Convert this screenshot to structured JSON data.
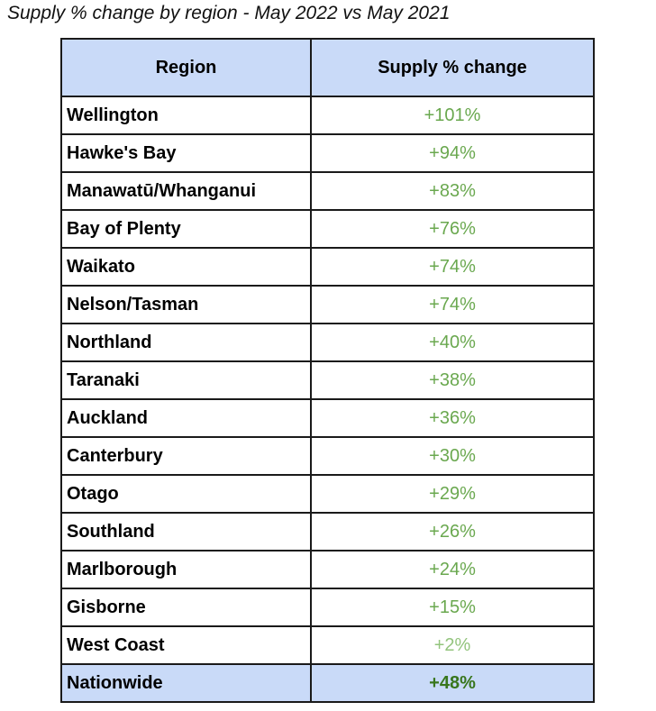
{
  "title": "Supply % change by region - May 2022 vs May 2021",
  "headers": {
    "region": "Region",
    "change": "Supply % change"
  },
  "rows": [
    {
      "region": "Wellington",
      "change": "+101%"
    },
    {
      "region": "Hawke's Bay",
      "change": "+94%"
    },
    {
      "region": "Manawatū/Whanganui",
      "change": "+83%"
    },
    {
      "region": "Bay of Plenty",
      "change": "+76%"
    },
    {
      "region": "Waikato",
      "change": "+74%"
    },
    {
      "region": "Nelson/Tasman",
      "change": "+74%"
    },
    {
      "region": "Northland",
      "change": "+40%"
    },
    {
      "region": "Taranaki",
      "change": "+38%"
    },
    {
      "region": "Auckland",
      "change": "+36%"
    },
    {
      "region": "Canterbury",
      "change": "+30%"
    },
    {
      "region": "Otago",
      "change": "+29%"
    },
    {
      "region": "Southland",
      "change": "+26%"
    },
    {
      "region": "Marlborough",
      "change": "+24%"
    },
    {
      "region": "Gisborne",
      "change": "+15%"
    },
    {
      "region": "West Coast",
      "change": "+2%"
    }
  ],
  "total": {
    "region": "Nationwide",
    "change": "+48%"
  },
  "colors": {
    "header_bg": "#c9daf8",
    "positive_text": "#6aa84f",
    "light_positive_text": "#93c47d",
    "total_text": "#38761d"
  }
}
